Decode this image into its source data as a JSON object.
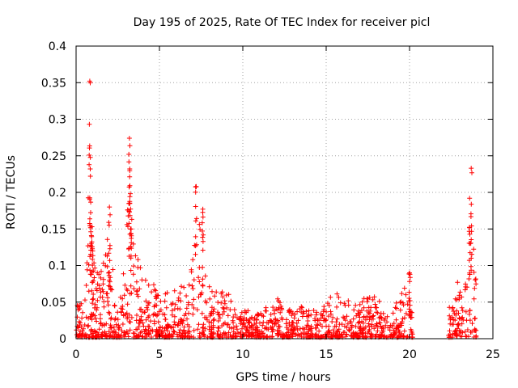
{
  "chart_data": {
    "type": "scatter",
    "title": "Day 195 of 2025, Rate Of TEC Index for receiver picl",
    "xlabel": "GPS time / hours",
    "ylabel": "ROTI / TECUs",
    "xlim": [
      0,
      25
    ],
    "ylim": [
      0,
      0.4
    ],
    "x_ticks": [
      0,
      5,
      10,
      15,
      20,
      25
    ],
    "x_tick_labels": [
      "0",
      "5",
      "10",
      "15",
      "20",
      "25"
    ],
    "y_ticks": [
      0,
      0.05,
      0.1,
      0.15,
      0.2,
      0.25,
      0.3,
      0.35,
      0.4
    ],
    "y_tick_labels": [
      "0",
      "0.05",
      "0.1",
      "0.15",
      "0.2",
      "0.25",
      "0.3",
      "0.35",
      "0.4"
    ],
    "grid": true,
    "marker": "+",
    "color": "#ff0000",
    "series": [
      {
        "name": "ROTI",
        "envelope": [
          [
            0.0,
            0.065
          ],
          [
            0.3,
            0.05
          ],
          [
            0.6,
            0.06
          ],
          [
            0.8,
            0.35
          ],
          [
            1.0,
            0.12
          ],
          [
            1.3,
            0.09
          ],
          [
            1.7,
            0.11
          ],
          [
            2.0,
            0.18
          ],
          [
            2.3,
            0.07
          ],
          [
            2.7,
            0.06
          ],
          [
            3.2,
            0.27
          ],
          [
            3.5,
            0.15
          ],
          [
            4.0,
            0.08
          ],
          [
            4.5,
            0.09
          ],
          [
            5.0,
            0.06
          ],
          [
            6.0,
            0.07
          ],
          [
            6.8,
            0.08
          ],
          [
            7.2,
            0.21
          ],
          [
            7.6,
            0.17
          ],
          [
            8.0,
            0.1
          ],
          [
            8.5,
            0.06
          ],
          [
            9.0,
            0.07
          ],
          [
            9.5,
            0.045
          ],
          [
            10.0,
            0.04
          ],
          [
            11.0,
            0.035
          ],
          [
            12.0,
            0.06
          ],
          [
            12.5,
            0.04
          ],
          [
            13.5,
            0.045
          ],
          [
            14.5,
            0.04
          ],
          [
            15.0,
            0.05
          ],
          [
            15.5,
            0.065
          ],
          [
            16.5,
            0.05
          ],
          [
            17.5,
            0.065
          ],
          [
            18.5,
            0.05
          ],
          [
            19.3,
            0.05
          ],
          [
            20.0,
            0.09
          ],
          [
            20.2,
            0.02
          ],
          [
            22.3,
            0.045
          ],
          [
            22.8,
            0.08
          ],
          [
            23.3,
            0.09
          ],
          [
            23.7,
            0.23
          ],
          [
            24.0,
            0.08
          ]
        ],
        "data_gap_hours": [
          20.2,
          22.3
        ],
        "peaks": [
          [
            0.82,
            0.352
          ],
          [
            0.85,
            0.232
          ],
          [
            0.95,
            0.153
          ],
          [
            1.0,
            0.12
          ],
          [
            2.0,
            0.18
          ],
          [
            3.2,
            0.274
          ],
          [
            3.22,
            0.232
          ],
          [
            3.3,
            0.15
          ],
          [
            7.2,
            0.208
          ],
          [
            7.6,
            0.177
          ],
          [
            20.0,
            0.09
          ],
          [
            23.7,
            0.233
          ],
          [
            23.6,
            0.192
          ]
        ]
      }
    ]
  }
}
